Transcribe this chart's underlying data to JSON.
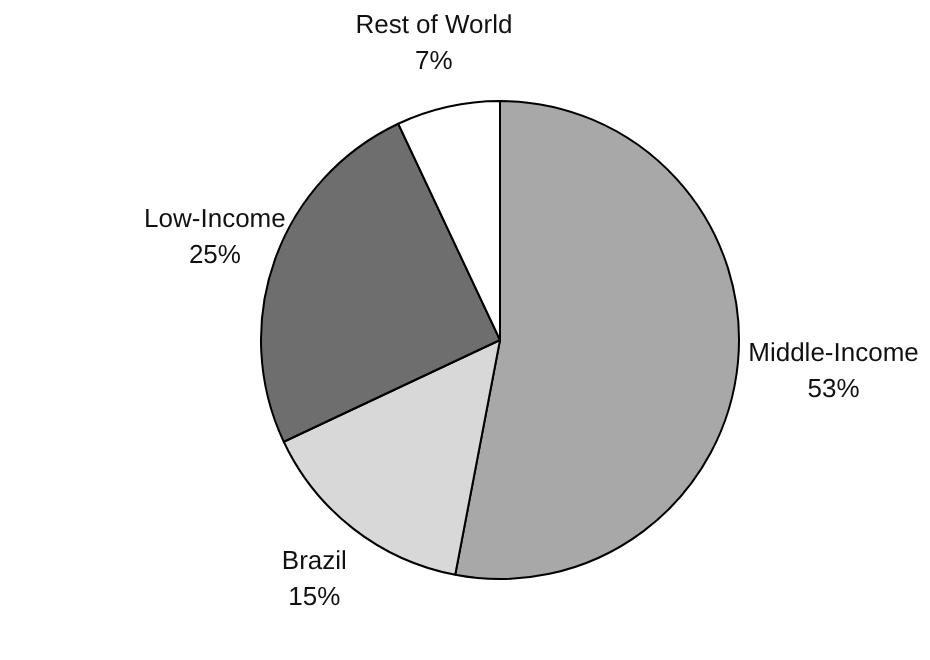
{
  "chart_data": {
    "type": "pie",
    "categories": [
      "Middle-Income",
      "Brazil",
      "Low-Income",
      "Rest of World"
    ],
    "values": [
      53,
      15,
      25,
      7
    ],
    "colors": [
      "#a8a8a8",
      "#d8d8d8",
      "#6e6e6e",
      "#ffffff"
    ],
    "value_labels": [
      "53%",
      "15%",
      "25%",
      "7%"
    ],
    "legend": false
  }
}
